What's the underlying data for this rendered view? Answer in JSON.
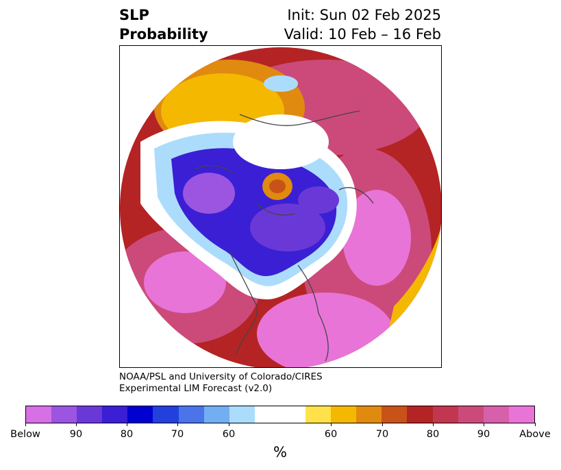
{
  "title": {
    "variable_line1": "SLP",
    "variable_line2": "Probability",
    "init": "Init: Sun 02 Feb 2025",
    "valid": "Valid: 10 Feb – 16 Feb"
  },
  "credit": {
    "line1": "NOAA/PSL and University of Colorado/CIRES",
    "line2": "Experimental LIM Forecast (v2.0)"
  },
  "colorbar": {
    "unit": "%",
    "colors": [
      "#d670e4",
      "#9b55e0",
      "#6b38d8",
      "#3a1fd4",
      "#0000d0",
      "#2340dc",
      "#4a74e8",
      "#72aef2",
      "#acdcfb",
      "#ffffff",
      "#ffe24a",
      "#f4b800",
      "#e08a10",
      "#c85218",
      "#b42424",
      "#c23650",
      "#cc4a7a",
      "#d760aa",
      "#e874d8"
    ],
    "tick_labels": [
      "Below",
      "90",
      "80",
      "70",
      "60",
      "60",
      "70",
      "80",
      "90",
      "Above"
    ]
  },
  "map": {
    "projection": "north polar stereographic",
    "palette": {
      "below_strong": "#9b55e0",
      "below_mid": "#3a1fd4",
      "below_weak": "#72aef2",
      "neutral": "#ffffff",
      "above_weak": "#f4b800",
      "above_mid": "#c85218",
      "above_strong": "#b42424",
      "above_very": "#cc4a7a",
      "above_max": "#e874d8"
    }
  }
}
